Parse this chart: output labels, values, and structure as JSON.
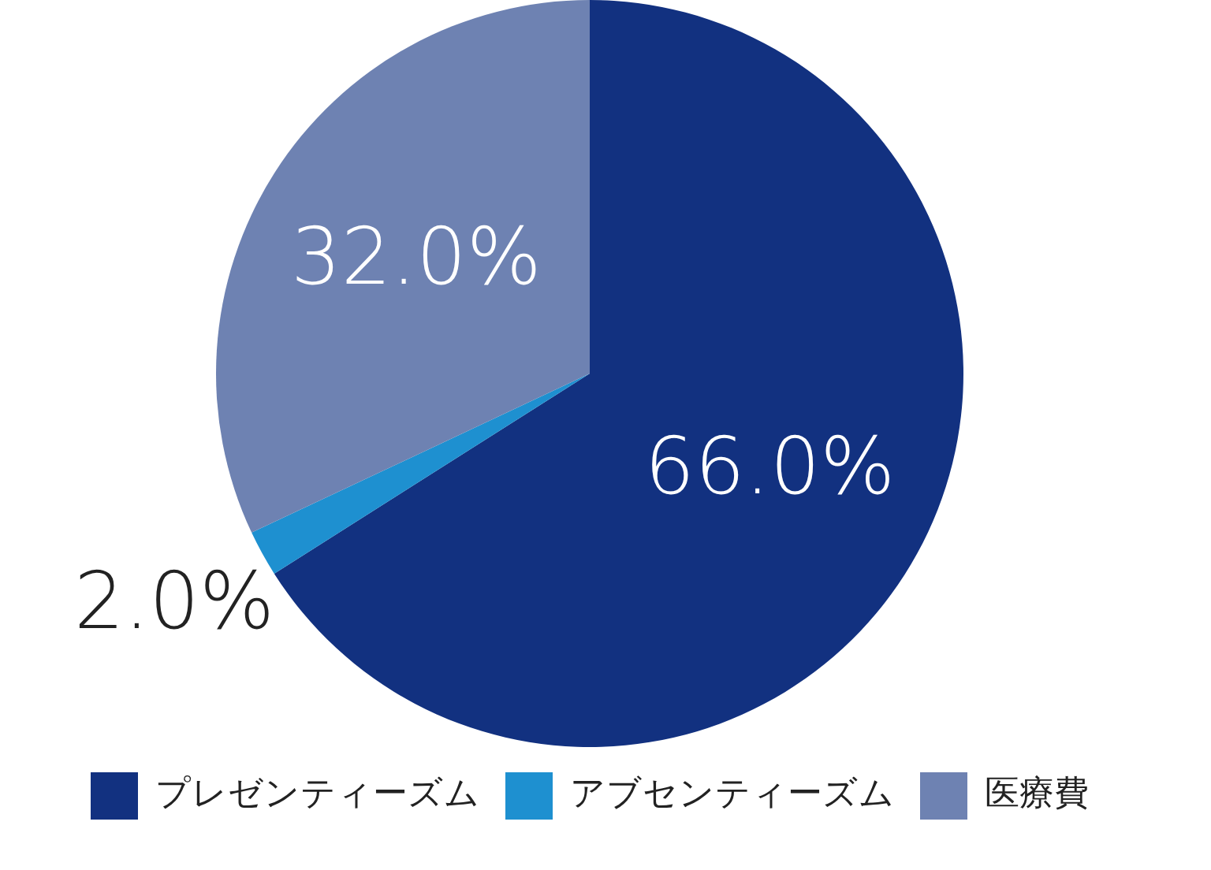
{
  "chart_data": {
    "type": "pie",
    "categories": [
      "プレゼンティーズム",
      "アブセンティーズム",
      "医療費"
    ],
    "values": [
      66.0,
      2.0,
      32.0
    ],
    "colors": [
      "#123180",
      "#1e90d0",
      "#6e82b2"
    ],
    "value_labels": [
      "66.0%",
      "2.0%",
      "32.0%"
    ],
    "legend": "bottom"
  }
}
